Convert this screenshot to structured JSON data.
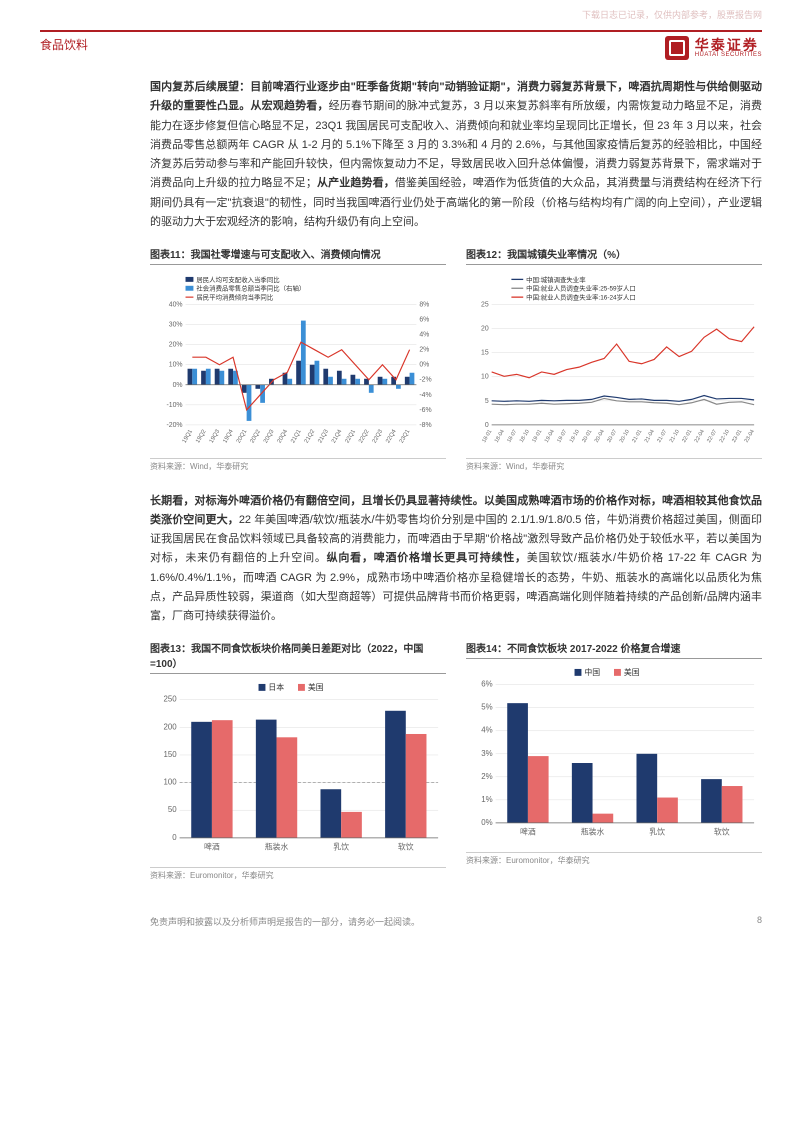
{
  "watermark": "下载日志已记录，仅供内部参考，股票报告网",
  "header": {
    "category": "食品饮料",
    "brand_cn": "华泰证券",
    "brand_en": "HUATAI SECURITIES",
    "brand_color": "#b01e23"
  },
  "para1": {
    "lead": "国内复苏后续展望：目前啤酒行业逐步由\"旺季备货期\"转向\"动销验证期\"，消费力弱复苏背景下，啤酒抗周期性与供给侧驱动升级的重要性凸显。从宏观趋势看，",
    "rest": "经历春节期间的脉冲式复苏，3 月以来复苏斜率有所放缓，内需恢复动力略显不足，消费能力在逐步修复但信心略显不足，23Q1 我国居民可支配收入、消费倾向和就业率均呈现同比正增长，但 23 年 3 月以来，社会消费品零售总额两年 CAGR 从 1-2 月的 5.1%下降至 3 月的 3.3%和 4 月的 2.6%，与其他国家疫情后复苏的经验相比，中国经济复苏后劳动参与率和产能回升较快，但内需恢复动力不足，导致居民收入回升总体偏慢，消费力弱复苏背景下，需求端对于消费品向上升级的拉力略显不足；",
    "bold2": "从产业趋势看，",
    "rest2": "借鉴美国经验，啤酒作为低货值的大众品，其消费量与消费结构在经济下行期间仍具有一定\"抗衰退\"的韧性，同时当我国啤酒行业仍处于高端化的第一阶段（价格与结构均有广阔的向上空间），产业逻辑的驱动力大于宏观经济的影响，结构升级仍有向上空间。"
  },
  "para2": {
    "lead": "长期看，对标海外啤酒价格仍有翻倍空间，且增长仍具显著持续性。以美国成熟啤酒市场的价格作对标，啤酒相较其他食饮品类涨价空间更大，",
    "rest": "22 年美国啤酒/软饮/瓶装水/牛奶零售均价分别是中国的 2.1/1.9/1.8/0.5 倍，牛奶消费价格超过美国，侧面印证我国居民在食品饮料领域已具备较高的消费能力，而啤酒由于早期\"价格战\"激烈导致产品价格仍处于较低水平，若以美国为对标，未来仍有翻倍的上升空间。",
    "bold2": "纵向看，啤酒价格增长更具可持续性，",
    "rest2": "美国软饮/瓶装水/牛奶价格 17-22 年 CAGR 为 1.6%/0.4%/1.1%，而啤酒 CAGR 为 2.9%，成熟市场中啤酒价格亦呈稳健增长的态势，牛奶、瓶装水的高端化以品质化为焦点，产品异质性较弱，渠道商（如大型商超等）可提供品牌背书而价格更弱，啤酒高端化则伴随着持续的产品创新/品牌内涵丰富，厂商可持续获得溢价。"
  },
  "chart11": {
    "title": "图表11：我国社零增速与可支配收入、消费倾向情况",
    "type": "bar+line",
    "legend": {
      "s1": "居民人均可支配收入当季同比",
      "s2": "社会消费品零售总额当季同比（右轴）",
      "s3": "居民平均消费倾向当季同比"
    },
    "colors": {
      "s1": "#1f3a6e",
      "s2": "#3b8fd6",
      "s3": "#d9362a",
      "grid": "#dddddd",
      "axis": "#666666"
    },
    "x_labels": [
      "19Q1",
      "19Q2",
      "19Q3",
      "19Q4",
      "20Q1",
      "20Q2",
      "20Q3",
      "20Q4",
      "21Q1",
      "21Q2",
      "21Q3",
      "21Q4",
      "22Q1",
      "22Q2",
      "22Q3",
      "22Q4",
      "23Q1"
    ],
    "s1_bars": [
      8,
      7,
      8,
      8,
      -4,
      -2,
      3,
      6,
      12,
      10,
      8,
      7,
      5,
      3,
      4,
      4,
      4
    ],
    "s2_bars": [
      8,
      8,
      7,
      7,
      -18,
      -9,
      0,
      3,
      32,
      12,
      4,
      3,
      3,
      -4,
      3,
      -2,
      6
    ],
    "s3_line": [
      1,
      1,
      0,
      1,
      -6,
      -4,
      -2,
      -1,
      3,
      2,
      1,
      2,
      0,
      -2,
      0,
      -2,
      2
    ],
    "yL": {
      "min": -20,
      "max": 40,
      "step": 10,
      "suffix": "%"
    },
    "yR": {
      "min": -8,
      "max": 8,
      "step": 2,
      "suffix": "%"
    },
    "source": "资料来源：Wind，华泰研究",
    "label_fontsize": 7
  },
  "chart12": {
    "title": "图表12：我国城镇失业率情况（%）",
    "type": "line",
    "legend": {
      "s1": "中国:城镇调查失业率",
      "s2": "中国:就业人员调查失业率:25-59岁人口",
      "s3": "中国:就业人员调查失业率:16-24岁人口"
    },
    "colors": {
      "s1": "#1f3a6e",
      "s2": "#888888",
      "s3": "#d9362a",
      "grid": "#dddddd",
      "axis": "#666666"
    },
    "x_labels": [
      "18-01",
      "18-04",
      "18-07",
      "18-10",
      "19-01",
      "19-04",
      "19-07",
      "19-10",
      "20-01",
      "20-04",
      "20-07",
      "20-10",
      "21-01",
      "21-04",
      "21-07",
      "21-10",
      "22-01",
      "22-04",
      "22-07",
      "22-10",
      "23-01",
      "23-04"
    ],
    "s1": [
      5.0,
      4.9,
      5.0,
      4.9,
      5.1,
      5.0,
      5.1,
      5.1,
      5.3,
      6.0,
      5.7,
      5.3,
      5.4,
      5.1,
      5.1,
      4.9,
      5.3,
      6.1,
      5.4,
      5.5,
      5.5,
      5.2
    ],
    "s2": [
      4.3,
      4.2,
      4.3,
      4.3,
      4.5,
      4.3,
      4.4,
      4.5,
      4.7,
      5.5,
      5.0,
      4.8,
      4.8,
      4.6,
      4.5,
      4.2,
      4.6,
      5.3,
      4.3,
      4.7,
      4.8,
      4.2
    ],
    "s3": [
      11.0,
      10.1,
      10.5,
      9.8,
      11.0,
      10.5,
      11.5,
      12.0,
      13.0,
      13.8,
      16.8,
      13.2,
      12.7,
      13.6,
      16.2,
      14.2,
      15.3,
      18.2,
      19.9,
      17.9,
      17.3,
      20.4
    ],
    "y": {
      "min": 0,
      "max": 25,
      "step": 5
    },
    "source": "资料来源：Wind，华泰研究",
    "label_fontsize": 7
  },
  "chart13": {
    "title": "图表13：我国不同食饮板块价格同美日差距对比（2022，中国=100）",
    "type": "grouped-bar",
    "legend": {
      "s1": "日本",
      "s2": "美国"
    },
    "colors": {
      "s1": "#1f3a6e",
      "s2": "#e66a6a",
      "grid": "#dddddd",
      "axis": "#666666",
      "ref": "#999999"
    },
    "categories": [
      "啤酒",
      "瓶装水",
      "乳饮",
      "软饮"
    ],
    "s1": [
      210,
      214,
      88,
      230
    ],
    "s2": [
      213,
      182,
      47,
      188
    ],
    "y": {
      "min": 0,
      "max": 250,
      "step": 50
    },
    "ref_line": 100,
    "source": "资料来源：Euromonitor，华泰研究",
    "bar_width": 0.32,
    "label_fontsize": 8
  },
  "chart14": {
    "title": "图表14：不同食饮板块 2017-2022 价格复合增速",
    "type": "grouped-bar",
    "legend": {
      "s1": "中国",
      "s2": "美国"
    },
    "colors": {
      "s1": "#1f3a6e",
      "s2": "#e66a6a",
      "grid": "#dddddd",
      "axis": "#666666"
    },
    "categories": [
      "啤酒",
      "瓶装水",
      "乳饮",
      "软饮"
    ],
    "s1": [
      5.2,
      2.6,
      3.0,
      1.9
    ],
    "s2": [
      2.9,
      0.4,
      1.1,
      1.6
    ],
    "y": {
      "min": 0,
      "max": 6,
      "step": 1,
      "suffix": "%"
    },
    "source": "资料来源：Euromonitor，华泰研究",
    "bar_width": 0.32,
    "label_fontsize": 8
  },
  "footer": {
    "disclaimer": "免责声明和披露以及分析师声明是报告的一部分，请务必一起阅读。",
    "page": "8"
  }
}
